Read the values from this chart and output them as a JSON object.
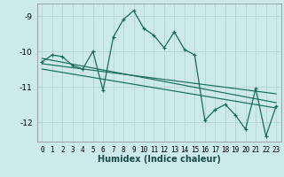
{
  "title": "",
  "xlabel": "Humidex (Indice chaleur)",
  "bg_color": "#cceaea",
  "grid_color": "#b8d8d8",
  "line_color": "#1a6b5a",
  "xlim": [
    -0.5,
    23.5
  ],
  "ylim": [
    -12.55,
    -8.65
  ],
  "yticks": [
    -12,
    -11,
    -10,
    -9
  ],
  "xticks": [
    0,
    1,
    2,
    3,
    4,
    5,
    6,
    7,
    8,
    9,
    10,
    11,
    12,
    13,
    14,
    15,
    16,
    17,
    18,
    19,
    20,
    21,
    22,
    23
  ],
  "main_data_x": [
    0,
    1,
    2,
    3,
    4,
    5,
    6,
    7,
    8,
    9,
    10,
    11,
    12,
    13,
    14,
    15,
    16,
    17,
    18,
    19,
    20,
    21,
    22,
    23
  ],
  "main_data_y": [
    -10.3,
    -10.1,
    -10.15,
    -10.4,
    -10.5,
    -10.0,
    -11.1,
    -9.6,
    -9.1,
    -8.85,
    -9.35,
    -9.55,
    -9.9,
    -9.45,
    -9.95,
    -10.1,
    -11.95,
    -11.65,
    -11.5,
    -11.8,
    -12.2,
    -11.05,
    -12.4,
    -11.55
  ],
  "trend1_x": [
    0,
    23
  ],
  "trend1_y": [
    -10.2,
    -11.45
  ],
  "trend2_x": [
    0,
    23
  ],
  "trend2_y": [
    -10.35,
    -11.2
  ],
  "trend3_x": [
    0,
    23
  ],
  "trend3_y": [
    -10.5,
    -11.6
  ]
}
